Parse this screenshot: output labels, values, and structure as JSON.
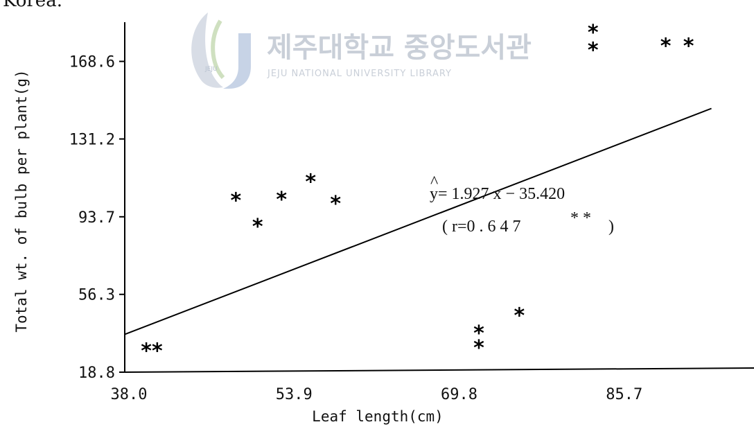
{
  "page": {
    "top_fragment": "Korea."
  },
  "watermark": {
    "title": "제주대학교 중앙도서관",
    "subtitle": "JEJU NATIONAL UNIVERSITY LIBRARY",
    "badge_text": "JEJU"
  },
  "chart_data": {
    "type": "scatter",
    "xlabel": "Leaf length(cm)",
    "ylabel": "Total wt. of bulb per plant(g)",
    "x_ticks": [
      "38.0",
      "53.9",
      "69.8",
      "85.7"
    ],
    "y_ticks": [
      "18.8",
      "56.3",
      "93.7",
      "131.2",
      "168.6"
    ],
    "xlim": [
      37.6,
      98.2
    ],
    "ylim": [
      18.8,
      187.5
    ],
    "points": [
      {
        "x": 40.2,
        "y": 30.0,
        "marker": "**"
      },
      {
        "x": 48.3,
        "y": 102.5,
        "marker": "*"
      },
      {
        "x": 50.4,
        "y": 90.0,
        "marker": "*"
      },
      {
        "x": 52.7,
        "y": 103.0,
        "marker": "*"
      },
      {
        "x": 55.5,
        "y": 111.5,
        "marker": "*"
      },
      {
        "x": 57.9,
        "y": 101.0,
        "marker": "*"
      },
      {
        "x": 71.7,
        "y": 31.5,
        "marker": "*"
      },
      {
        "x": 71.7,
        "y": 38.5,
        "marker": "*"
      },
      {
        "x": 75.6,
        "y": 47.0,
        "marker": "*"
      },
      {
        "x": 82.7,
        "y": 175.0,
        "marker": "*"
      },
      {
        "x": 82.7,
        "y": 183.5,
        "marker": "*"
      },
      {
        "x": 89.7,
        "y": 177.0,
        "marker": "*"
      },
      {
        "x": 91.9,
        "y": 177.0,
        "marker": "*"
      }
    ],
    "regression": {
      "x_start": 37.6,
      "x_end": 94.1,
      "slope": 1.927,
      "intercept": -35.42
    },
    "annotation": {
      "equation": "y= 1.927 x − 35.420",
      "hat": "^",
      "r_text": "( r=0 . 6 4 7",
      "r_stars": "* *",
      "r_close": ")"
    }
  }
}
